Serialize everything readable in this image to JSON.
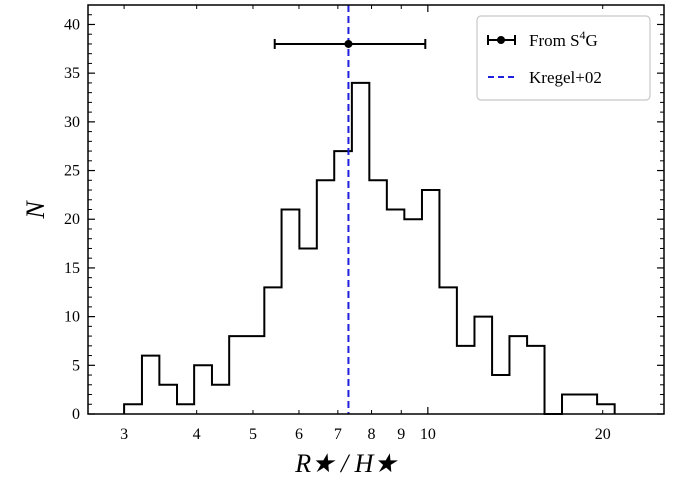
{
  "chart_data": {
    "type": "histogram",
    "title": "",
    "xlabel": "R★ / H★",
    "ylabel": "N",
    "x_scale": "log",
    "xlim": [
      2.6,
      25.5
    ],
    "ylim": [
      0,
      42
    ],
    "grid": false,
    "legend_position": "top-right",
    "x_ticks": [
      3,
      4,
      5,
      6,
      7,
      8,
      9,
      10,
      20
    ],
    "y_ticks": [
      0,
      5,
      10,
      15,
      20,
      25,
      30,
      35,
      40
    ],
    "bin_edges": [
      3.0,
      3.22,
      3.45,
      3.7,
      3.96,
      4.25,
      4.55,
      4.88,
      5.23,
      5.6,
      6.01,
      6.44,
      6.9,
      7.4,
      7.93,
      8.5,
      9.11,
      9.77,
      10.47,
      11.22,
      12.03,
      12.9,
      13.82,
      14.82,
      15.88,
      17.02,
      18.25,
      19.56,
      20.97
    ],
    "counts": [
      1,
      6,
      3,
      1,
      5,
      3,
      8,
      8,
      13,
      21,
      17,
      24,
      27,
      34,
      24,
      21,
      20,
      23,
      13,
      7,
      10,
      4,
      8,
      7,
      0,
      2,
      2,
      1
    ],
    "series": [
      {
        "name": "From S$^4$G",
        "kind": "errorbar",
        "x": 7.3,
        "x_err_low": 5.45,
        "x_err_high": 9.9,
        "y": 38
      },
      {
        "name": "Kregel+02",
        "kind": "vline",
        "x": 7.3,
        "color": "#1f1fdd"
      }
    ],
    "legend": {
      "items": [
        {
          "label_main": "From S",
          "label_sup": "4",
          "label_tail": "G"
        },
        {
          "label_main": "Kregel+02"
        }
      ]
    },
    "colors": {
      "histogram": "#000000",
      "errorbar": "#000000",
      "vline": "#1f1fdd"
    }
  }
}
